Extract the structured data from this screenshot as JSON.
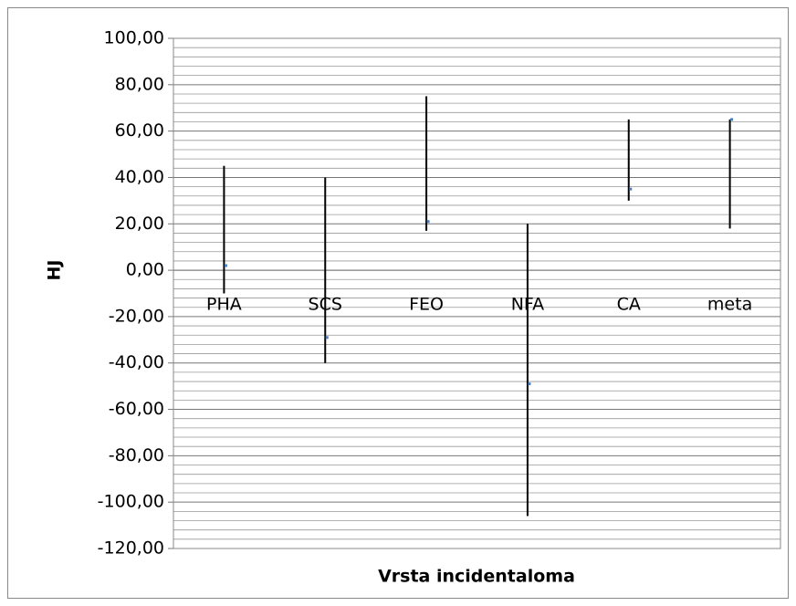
{
  "chart_data": {
    "type": "high-low-close",
    "x_label": "Vrsta incidentaloma",
    "y_label": "HJ",
    "categories": [
      "PHA",
      "SCS",
      "FEO",
      "NFA",
      "CA",
      "meta"
    ],
    "high": [
      45,
      40,
      75,
      20,
      65,
      65
    ],
    "low": [
      -10,
      -40,
      17,
      -106,
      30,
      18
    ],
    "close": [
      2,
      -29,
      21,
      -49,
      35,
      65
    ],
    "line_color": "#000000",
    "marker_color": "#4a7ebb",
    "ylim": [
      -120,
      100
    ],
    "yticks": [
      {
        "value": -120,
        "label": "-120,00"
      },
      {
        "value": -100,
        "label": "-100,00"
      },
      {
        "value": -80,
        "label": "-80,00"
      },
      {
        "value": -60,
        "label": "-60,00"
      },
      {
        "value": -40,
        "label": "-40,00"
      },
      {
        "value": -20,
        "label": "-20,00"
      },
      {
        "value": 0,
        "label": "0,00"
      },
      {
        "value": 20,
        "label": "20,00"
      },
      {
        "value": 40,
        "label": "40,00"
      },
      {
        "value": 60,
        "label": "60,00"
      },
      {
        "value": 80,
        "label": "80,00"
      },
      {
        "value": 100,
        "label": "100,00"
      }
    ],
    "minor_yticks": [
      -116,
      -112,
      -108,
      -104,
      -96,
      -92,
      -88,
      -84,
      -76,
      -72,
      -68,
      -64,
      -56,
      -52,
      -48,
      -44,
      -36,
      -32,
      -28,
      -24,
      -16,
      -12,
      -8,
      -4,
      4,
      8,
      12,
      16,
      24,
      28,
      32,
      36,
      44,
      48,
      52,
      56,
      64,
      68,
      72,
      76,
      84,
      88,
      92,
      96
    ],
    "grid": true
  }
}
